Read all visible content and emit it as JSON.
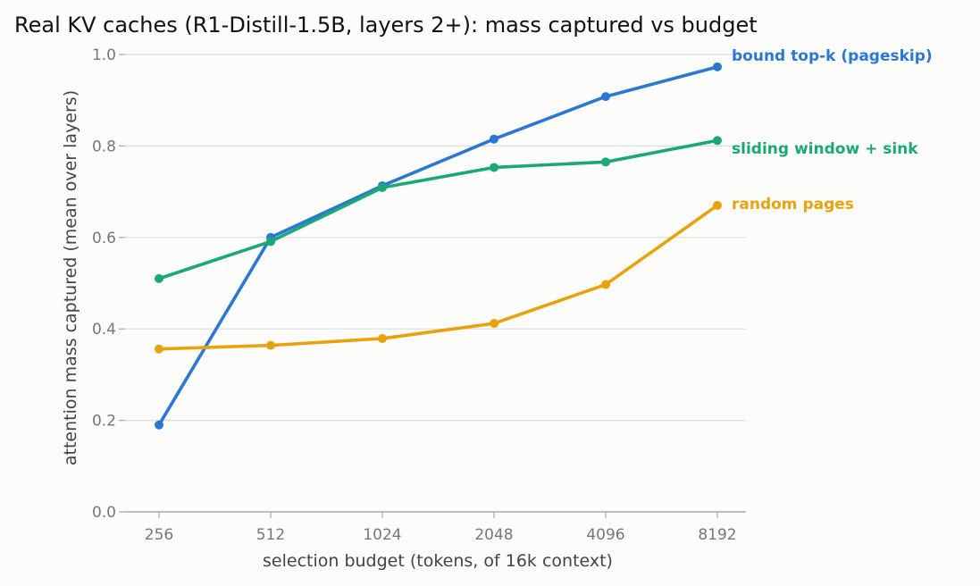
{
  "chart_data": {
    "type": "line",
    "title": "Real KV caches (R1-Distill-1.5B, layers 2+): mass captured vs budget",
    "xlabel": "selection budget (tokens, of 16k context)",
    "ylabel": "attention mass captured (mean over layers)",
    "categories": [
      "256",
      "512",
      "1024",
      "2048",
      "4096",
      "8192"
    ],
    "ylim": [
      0,
      1.0
    ],
    "yticks": [
      "0.0",
      "0.2",
      "0.4",
      "0.6",
      "0.8",
      "1.0"
    ],
    "grid": "horizontal",
    "legend": "inline labels at line ends",
    "series": [
      {
        "name": "bound top-k (pageskip)",
        "color": "#2b78d4",
        "values": [
          0.19,
          0.6,
          0.713,
          0.815,
          0.908,
          0.973
        ]
      },
      {
        "name": "sliding window + sink",
        "color": "#1ba874",
        "values": [
          0.51,
          0.591,
          0.709,
          0.753,
          0.765,
          0.812
        ]
      },
      {
        "name": "random pages",
        "color": "#e8a20b",
        "values": [
          0.356,
          0.364,
          0.379,
          0.412,
          0.497,
          0.67
        ]
      }
    ]
  }
}
